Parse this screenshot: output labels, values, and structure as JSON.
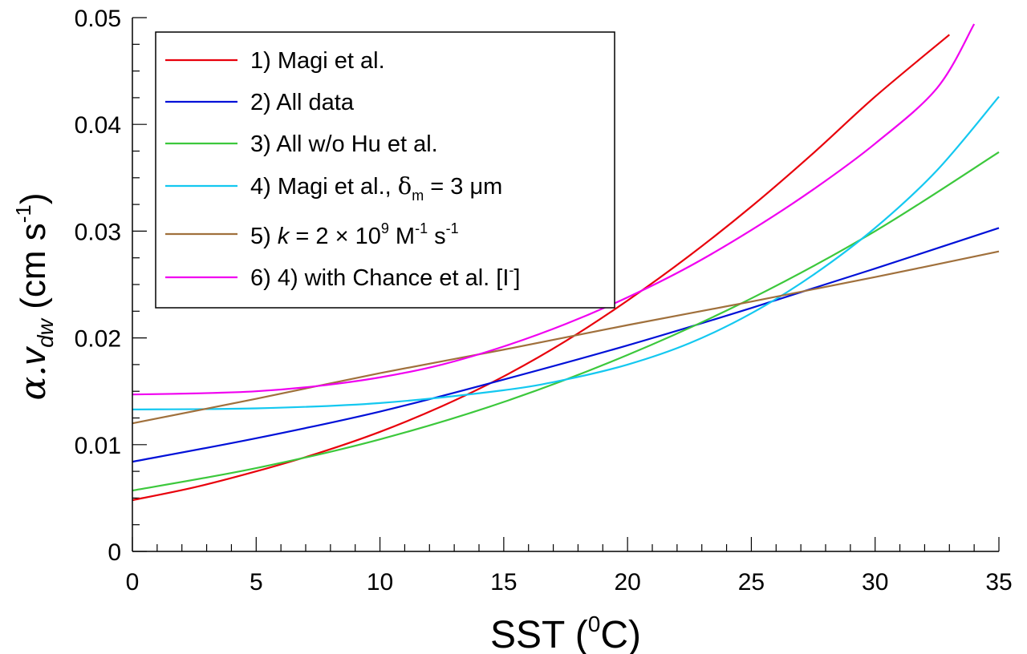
{
  "chart_data": {
    "type": "line",
    "title": "",
    "xlabel": "SST (⁰C)",
    "ylabel": "α.v_dw (cm s⁻¹)",
    "xlim": [
      0,
      35
    ],
    "ylim": [
      0,
      0.05
    ],
    "x_ticks": [
      "0",
      "5",
      "10",
      "15",
      "20",
      "25",
      "30",
      "35"
    ],
    "y_ticks": [
      "0",
      "0.01",
      "0.02",
      "0.03",
      "0.04",
      "0.05"
    ],
    "legend_position": "top-left",
    "grid": false,
    "series": [
      {
        "name": "1) Magi et al.",
        "color": "#e8000b",
        "x": [
          0,
          2.5,
          5,
          7.5,
          10,
          12.5,
          15,
          17.5,
          20,
          22.5,
          25,
          27.5,
          30,
          33
        ],
        "y": [
          0.0048,
          0.006,
          0.0075,
          0.0092,
          0.0112,
          0.0136,
          0.0164,
          0.0197,
          0.0235,
          0.0277,
          0.0323,
          0.0373,
          0.0426,
          0.0484
        ]
      },
      {
        "name": "2) All data",
        "color": "#0010d8",
        "x": [
          0,
          5,
          10,
          15,
          20,
          25,
          30,
          35
        ],
        "y": [
          0.0084,
          0.0106,
          0.0131,
          0.0161,
          0.0193,
          0.0228,
          0.0265,
          0.0303
        ]
      },
      {
        "name": "3) All w/o Hu et al.",
        "color": "#3cc83c",
        "x": [
          0,
          5,
          10,
          15,
          20,
          25,
          30,
          35
        ],
        "y": [
          0.0057,
          0.0078,
          0.0105,
          0.014,
          0.0184,
          0.0237,
          0.03,
          0.0374
        ]
      },
      {
        "name": "4) Magi et al., δm = 3 μm",
        "color": "#14c8f0",
        "x": [
          0,
          5,
          10,
          15,
          17.5,
          20,
          22.5,
          25,
          27.5,
          30,
          32.5,
          35
        ],
        "y": [
          0.0133,
          0.0134,
          0.0139,
          0.0151,
          0.0161,
          0.0175,
          0.0195,
          0.0223,
          0.0259,
          0.0303,
          0.0357,
          0.0426
        ]
      },
      {
        "name": "5) k = 2 × 10⁹ M⁻¹ s⁻¹",
        "color": "#a0703c",
        "x": [
          0,
          5,
          10,
          15,
          20,
          25,
          30,
          35
        ],
        "y": [
          0.012,
          0.0143,
          0.0167,
          0.0189,
          0.0212,
          0.0234,
          0.0257,
          0.0281
        ]
      },
      {
        "name": "6) 4) with Chance et al. [I⁻]",
        "color": "#f000f0",
        "x": [
          0,
          2.5,
          5,
          7.5,
          10,
          12.5,
          15,
          17.5,
          20,
          22.5,
          25,
          27.5,
          30,
          32.5,
          34
        ],
        "y": [
          0.0147,
          0.0148,
          0.015,
          0.0155,
          0.0163,
          0.0175,
          0.0192,
          0.0213,
          0.0238,
          0.0267,
          0.0301,
          0.0339,
          0.0382,
          0.0434,
          0.0494
        ]
      }
    ]
  },
  "legend": {
    "items": [
      {
        "prefix": "1) Magi et al."
      },
      {
        "prefix": "2) All data"
      },
      {
        "prefix": "3) All w/o Hu et al."
      },
      {
        "prefix": "4) Magi et al., ",
        "delta": "δ",
        "delta_sub": "m",
        "suffix": " = 3 μm"
      },
      {
        "prefix": "5) ",
        "k": "k",
        "eq": " = 2 × 10",
        "sup1": "9",
        "m": " M",
        "sup2": "-1",
        "s": " s",
        "sup3": "-1"
      },
      {
        "prefix": "6) 4) with Chance et al. [I",
        "sup": "-",
        "suffix": "]"
      }
    ]
  },
  "axes": {
    "x_title_main": "SST (",
    "x_title_sup": "0",
    "x_title_end": "C)",
    "y_title_alpha": "α.",
    "y_title_v": "v",
    "y_title_sub": "dw",
    "y_title_units": " (cm s",
    "y_title_sup": "-1",
    "y_title_close": ")"
  }
}
